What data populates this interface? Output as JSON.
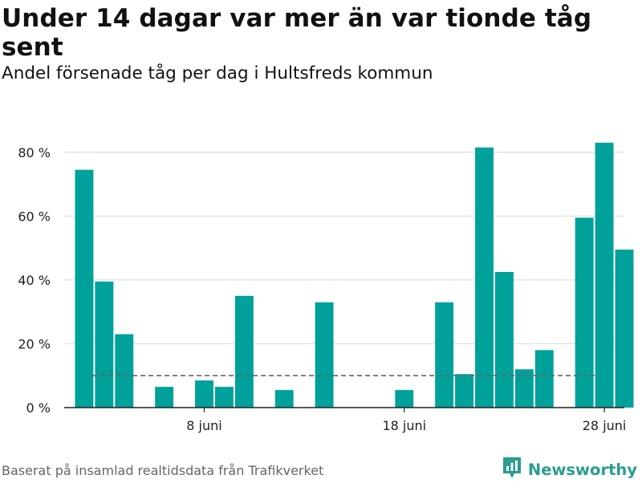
{
  "title": "Under 14 dagar var mer än var tionde tåg sent",
  "subtitle": "Andel försenade tåg per dag i Hultsfreds kommun",
  "footer": "Baserat på insamlad realtidsdata från Trafikverket",
  "brand": {
    "name": "Newsworthy",
    "icon": "newsworthy-logo-icon",
    "color": "#2a9d8f"
  },
  "colors": {
    "bar": "#00a19a",
    "reference_line": "#666666",
    "grid": "#dddddd",
    "axis": "#222222"
  },
  "chart_data": {
    "type": "bar",
    "x_start": "2024-06-01",
    "x_end": "2024-06-29",
    "x": [
      "2024-06-02",
      "2024-06-03",
      "2024-06-04",
      "2024-06-05",
      "2024-06-06",
      "2024-06-07",
      "2024-06-08",
      "2024-06-09",
      "2024-06-10",
      "2024-06-11",
      "2024-06-12",
      "2024-06-13",
      "2024-06-14",
      "2024-06-15",
      "2024-06-16",
      "2024-06-17",
      "2024-06-18",
      "2024-06-19",
      "2024-06-20",
      "2024-06-21",
      "2024-06-22",
      "2024-06-23",
      "2024-06-24",
      "2024-06-25",
      "2024-06-26",
      "2024-06-27",
      "2024-06-28",
      "2024-06-29"
    ],
    "values": [
      74.5,
      39.5,
      23,
      0,
      6.5,
      0,
      8.5,
      6.5,
      35,
      0,
      5.5,
      0,
      33,
      0,
      0,
      0,
      5.5,
      0,
      33,
      10.5,
      81.5,
      42.5,
      12,
      18,
      0,
      59.5,
      83,
      49.5
    ],
    "ylim": [
      0,
      90
    ],
    "yticks": [
      0,
      20,
      40,
      60,
      80
    ],
    "ytick_labels": [
      "0 %",
      "20 %",
      "40 %",
      "60 %",
      "80 %"
    ],
    "xticks": [
      "2024-06-08",
      "2024-06-18",
      "2024-06-28"
    ],
    "xtick_labels": [
      "8 juni",
      "18 juni",
      "28 juni"
    ],
    "reference_line": {
      "y": 10,
      "style": "dashed"
    },
    "grid": true,
    "xlabel": "",
    "ylabel": ""
  }
}
